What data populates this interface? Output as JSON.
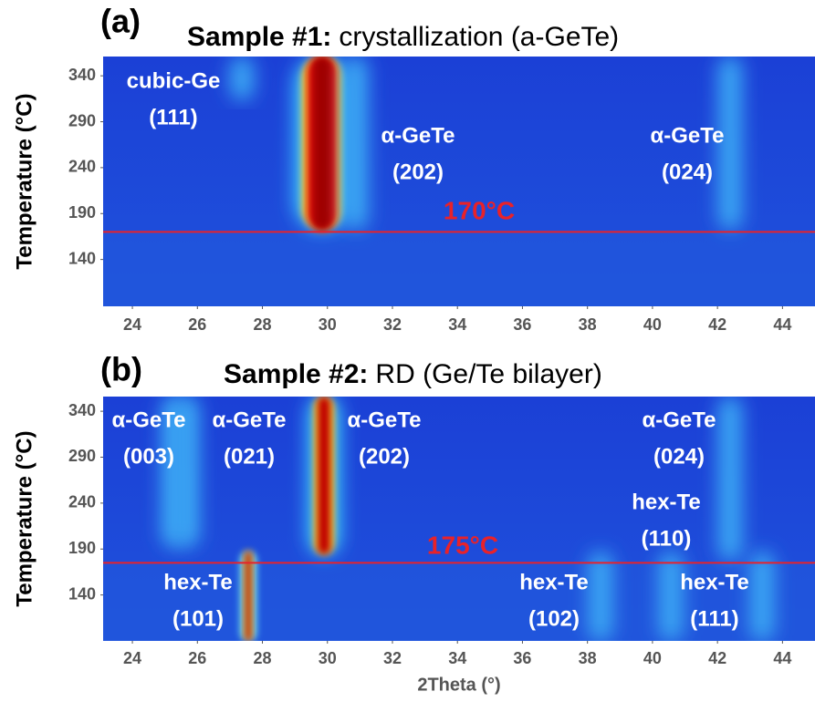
{
  "chart_data": [
    {
      "type": "heatmap",
      "panel": "(a)",
      "title_bold": "Sample #1:",
      "title": "crystallization (a-GeTe)",
      "ylabel": "Temperature (°C)",
      "xlim": [
        23.1,
        45
      ],
      "xticks": [
        24,
        26,
        28,
        30,
        32,
        34,
        36,
        38,
        40,
        42,
        44
      ],
      "ylim": [
        89,
        361
      ],
      "yticks": [
        140,
        190,
        240,
        290,
        340
      ],
      "threshold": {
        "value": 170,
        "label": "170°C",
        "color": "#e8222a"
      },
      "annotations": [
        [
          "cubic-Ge",
          "(111)"
        ],
        [
          "α-GeTe",
          "(202)"
        ],
        [
          "α-GeTe",
          "(024)"
        ]
      ]
    },
    {
      "type": "heatmap",
      "panel": "(b)",
      "title_bold": "Sample #2:",
      "title": "RD (Ge/Te bilayer)",
      "ylabel": "Temperature (°C)",
      "xlabel": "2Theta (°)",
      "xlim": [
        23.1,
        45
      ],
      "xticks": [
        24,
        26,
        28,
        30,
        32,
        34,
        36,
        38,
        40,
        42,
        44
      ],
      "ylim": [
        90,
        356
      ],
      "yticks": [
        140,
        190,
        240,
        290,
        340
      ],
      "threshold": {
        "value": 175,
        "label": "175°C",
        "color": "#e8222a"
      },
      "annotations": [
        [
          "α-GeTe",
          "(003)"
        ],
        [
          "α-GeTe",
          "(021)"
        ],
        [
          "α-GeTe",
          "(202)"
        ],
        [
          "α-GeTe",
          "(024)"
        ],
        [
          "hex-Te",
          "(110)"
        ],
        [
          "hex-Te",
          "(101)"
        ],
        [
          "hex-Te",
          "(102)"
        ],
        [
          "hex-Te",
          "(111)"
        ]
      ]
    }
  ]
}
